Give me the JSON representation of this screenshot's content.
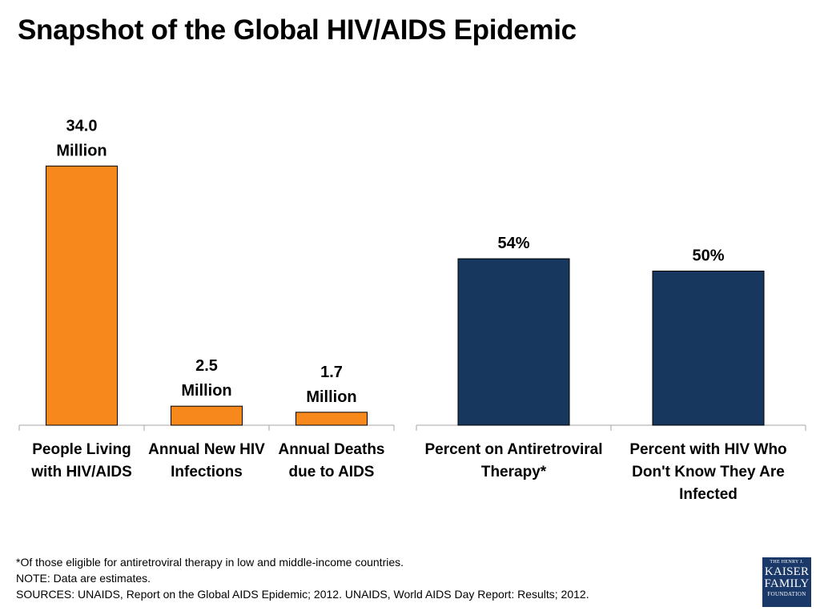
{
  "title": "Snapshot of the Global HIV/AIDS Epidemic",
  "colors": {
    "left": "#f7881b",
    "right": "#17375e",
    "axis": "#a6a6a6"
  },
  "chart_data": [
    {
      "type": "bar",
      "title": "",
      "categories": [
        [
          "People Living",
          "with HIV/AIDS"
        ],
        [
          "Annual New HIV",
          "Infections"
        ],
        [
          "Annual Deaths",
          "due to AIDS"
        ]
      ],
      "values": [
        34.0,
        2.5,
        1.7
      ],
      "unit": "Million",
      "data_labels": [
        [
          "34.0",
          "Million"
        ],
        [
          "2.5",
          "Million"
        ],
        [
          "1.7",
          "Million"
        ]
      ],
      "ylim": [
        0,
        37.5
      ],
      "grid": false
    },
    {
      "type": "bar",
      "title": "",
      "categories": [
        [
          "Percent on Antiretroviral",
          "Therapy*"
        ],
        [
          "Percent with HIV Who",
          "Don't Know They Are",
          "Infected"
        ]
      ],
      "values": [
        54,
        50
      ],
      "unit": "%",
      "data_labels": [
        [
          "54%"
        ],
        [
          "50%"
        ]
      ],
      "ylim": [
        0,
        100
      ],
      "grid": false
    }
  ],
  "footnotes": [
    "*Of those eligible for antiretroviral therapy in low and middle-income countries.",
    "NOTE: Data are estimates.",
    "SOURCES:  UNAIDS, Report on the Global AIDS Epidemic; 2012. UNAIDS, World AIDS Day Report: Results; 2012."
  ],
  "logo": {
    "line1": "THE HENRY J.",
    "line2": "KAISER",
    "line3": "FAMILY",
    "line4": "FOUNDATION"
  }
}
